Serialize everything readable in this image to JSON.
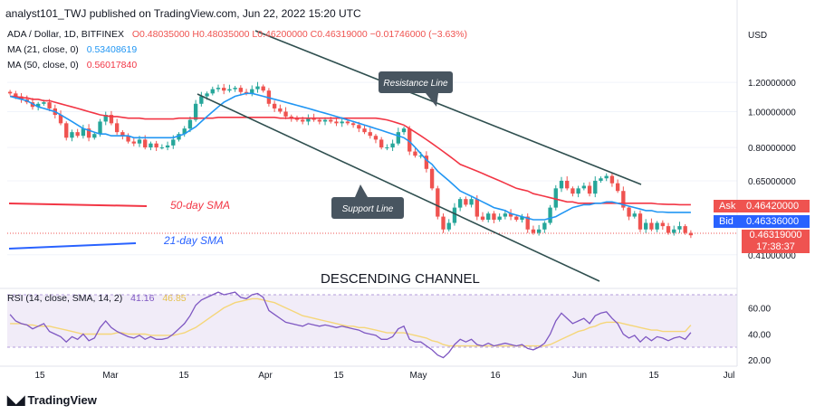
{
  "header": {
    "published": "analyst101_TWJ published on TradingView.com, Jun 22, 2022 15:20 UTC"
  },
  "legend": {
    "symbol": "ADA / Dollar, 1D, BITFINEX",
    "ohlc": "O0.48035000 H0.48035000 L0.46200000 C0.46319000 −0.01746000 (−3.63%)",
    "ma21_label": "MA (21, close, 0)",
    "ma21_value": "0.53408619",
    "ma50_label": "MA (50, close, 0)",
    "ma50_value": "0.56017840",
    "rsi_label": "RSI (14, close, SMA, 14, 2)",
    "rsi_value": "41.16",
    "rsi_sma_value": "46.85"
  },
  "annotations": {
    "resistance_line": "Resistance Line",
    "support_line": "Support Line",
    "sma50_text": "50-day SMA",
    "sma21_text": "21-day SMA",
    "channel_text": "DESCENDING  CHANNEL"
  },
  "price_axis": {
    "currency": "USD",
    "ask_label": "Ask",
    "ask_value": "0.46420000",
    "bid_label": "Bid",
    "bid_value": "0.46336000",
    "last_value": "0.46319000",
    "countdown": "17:38:37"
  },
  "footer": {
    "brand": "TradingView"
  },
  "colors": {
    "up": "#26a69a",
    "down": "#ef5350",
    "ma21": "#2196f3",
    "ma50": "#f23645",
    "rsi": "#7e57c2",
    "rsi_sma": "#f5d679",
    "line": "#2f4f4f",
    "callout": "#485560"
  },
  "chart_data": {
    "type": "candlestick",
    "price_scale": "log",
    "x_tick_labels": [
      "15",
      "Mar",
      "15",
      "Apr",
      "15",
      "May",
      "16",
      "Jun",
      "15",
      "Jul"
    ],
    "y_tick_labels": [
      "1.20000000",
      "1.00000000",
      "0.80000000",
      "0.65000000",
      "0.41000000"
    ],
    "y_ticks": [
      1.2,
      1.0,
      0.8,
      0.65,
      0.41
    ],
    "ylim": [
      0.37,
      1.6
    ],
    "candles_close": [
      1.12,
      1.1,
      1.08,
      1.06,
      1.03,
      1.05,
      1.06,
      1.02,
      0.98,
      0.93,
      0.85,
      0.88,
      0.86,
      0.9,
      0.85,
      0.87,
      0.94,
      0.98,
      0.93,
      0.88,
      0.86,
      0.83,
      0.82,
      0.84,
      0.8,
      0.82,
      0.8,
      0.8,
      0.81,
      0.84,
      0.87,
      0.9,
      0.95,
      1.05,
      1.1,
      1.12,
      1.15,
      1.16,
      1.14,
      1.15,
      1.16,
      1.13,
      1.12,
      1.15,
      1.17,
      1.14,
      1.05,
      1.02,
      1.0,
      0.97,
      0.96,
      0.95,
      0.94,
      0.96,
      0.95,
      0.94,
      0.95,
      0.94,
      0.93,
      0.94,
      0.93,
      0.92,
      0.9,
      0.88,
      0.86,
      0.84,
      0.8,
      0.8,
      0.82,
      0.88,
      0.9,
      0.78,
      0.76,
      0.76,
      0.7,
      0.62,
      0.52,
      0.48,
      0.5,
      0.55,
      0.58,
      0.56,
      0.58,
      0.52,
      0.51,
      0.53,
      0.51,
      0.52,
      0.53,
      0.52,
      0.51,
      0.52,
      0.48,
      0.47,
      0.48,
      0.5,
      0.55,
      0.62,
      0.65,
      0.62,
      0.6,
      0.62,
      0.63,
      0.6,
      0.65,
      0.66,
      0.67,
      0.64,
      0.61,
      0.55,
      0.52,
      0.53,
      0.48,
      0.5,
      0.48,
      0.5,
      0.49,
      0.47,
      0.48,
      0.49,
      0.47,
      0.463
    ],
    "ma21": [
      1.1,
      1.09,
      1.08,
      1.07,
      1.05,
      1.03,
      1.02,
      1.01,
      1.0,
      0.98,
      0.96,
      0.94,
      0.92,
      0.9,
      0.89,
      0.88,
      0.87,
      0.87,
      0.86,
      0.86,
      0.86,
      0.86,
      0.85,
      0.85,
      0.85,
      0.85,
      0.85,
      0.85,
      0.85,
      0.85,
      0.86,
      0.87,
      0.89,
      0.91,
      0.94,
      0.97,
      1.0,
      1.03,
      1.06,
      1.08,
      1.1,
      1.11,
      1.12,
      1.12,
      1.11,
      1.1,
      1.09,
      1.08,
      1.07,
      1.06,
      1.05,
      1.04,
      1.03,
      1.02,
      1.01,
      1.0,
      0.99,
      0.98,
      0.97,
      0.96,
      0.95,
      0.94,
      0.93,
      0.92,
      0.91,
      0.9,
      0.89,
      0.88,
      0.87,
      0.86,
      0.85,
      0.83,
      0.8,
      0.77,
      0.74,
      0.72,
      0.69,
      0.67,
      0.65,
      0.63,
      0.61,
      0.6,
      0.59,
      0.58,
      0.57,
      0.56,
      0.55,
      0.545,
      0.54,
      0.53,
      0.525,
      0.52,
      0.515,
      0.51,
      0.51,
      0.51,
      0.515,
      0.52,
      0.53,
      0.54,
      0.55,
      0.555,
      0.56,
      0.56,
      0.565,
      0.565,
      0.57,
      0.57,
      0.565,
      0.56,
      0.555,
      0.55,
      0.545,
      0.54,
      0.54,
      0.535,
      0.535,
      0.534,
      0.534,
      0.534,
      0.534,
      0.534
    ],
    "ma50": [
      1.1,
      1.1,
      1.09,
      1.09,
      1.08,
      1.08,
      1.07,
      1.07,
      1.06,
      1.05,
      1.04,
      1.03,
      1.02,
      1.01,
      1.0,
      0.99,
      0.98,
      0.975,
      0.97,
      0.97,
      0.965,
      0.96,
      0.96,
      0.96,
      0.955,
      0.955,
      0.955,
      0.955,
      0.955,
      0.955,
      0.96,
      0.96,
      0.96,
      0.96,
      0.96,
      0.96,
      0.96,
      0.965,
      0.965,
      0.965,
      0.965,
      0.965,
      0.965,
      0.965,
      0.965,
      0.965,
      0.965,
      0.965,
      0.96,
      0.96,
      0.96,
      0.96,
      0.96,
      0.96,
      0.96,
      0.96,
      0.96,
      0.96,
      0.96,
      0.96,
      0.96,
      0.96,
      0.96,
      0.96,
      0.96,
      0.96,
      0.955,
      0.95,
      0.94,
      0.93,
      0.92,
      0.9,
      0.88,
      0.86,
      0.84,
      0.82,
      0.8,
      0.78,
      0.76,
      0.74,
      0.72,
      0.71,
      0.7,
      0.69,
      0.68,
      0.67,
      0.66,
      0.65,
      0.64,
      0.63,
      0.62,
      0.615,
      0.61,
      0.6,
      0.595,
      0.59,
      0.585,
      0.58,
      0.575,
      0.57,
      0.57,
      0.565,
      0.565,
      0.565,
      0.565,
      0.565,
      0.565,
      0.565,
      0.565,
      0.565,
      0.565,
      0.565,
      0.565,
      0.565,
      0.565,
      0.563,
      0.562,
      0.561,
      0.561,
      0.56,
      0.56,
      0.56
    ],
    "rsi": [
      55,
      50,
      48,
      47,
      44,
      46,
      48,
      42,
      40,
      38,
      34,
      38,
      36,
      40,
      35,
      37,
      45,
      50,
      45,
      42,
      40,
      38,
      37,
      39,
      36,
      38,
      36,
      36,
      37,
      40,
      44,
      48,
      54,
      62,
      66,
      68,
      70,
      72,
      70,
      71,
      72,
      68,
      67,
      70,
      71,
      68,
      58,
      55,
      52,
      49,
      48,
      47,
      46,
      48,
      47,
      46,
      47,
      46,
      45,
      46,
      45,
      44,
      43,
      41,
      40,
      39,
      36,
      36,
      38,
      44,
      46,
      36,
      34,
      34,
      31,
      28,
      24,
      22,
      26,
      32,
      36,
      34,
      36,
      32,
      31,
      33,
      31,
      32,
      33,
      32,
      31,
      32,
      29,
      28,
      30,
      33,
      40,
      50,
      56,
      52,
      48,
      50,
      52,
      48,
      54,
      56,
      57,
      52,
      48,
      40,
      37,
      39,
      34,
      38,
      35,
      38,
      37,
      35,
      37,
      38,
      36,
      41.16
    ],
    "rsi_sma": [
      48,
      48,
      48,
      47,
      47,
      46,
      46,
      46,
      45,
      44,
      43,
      42,
      41,
      40,
      40,
      40,
      40,
      40,
      40,
      41,
      41,
      40,
      40,
      40,
      40,
      39,
      39,
      39,
      39,
      39,
      40,
      41,
      43,
      45,
      48,
      51,
      54,
      57,
      60,
      62,
      64,
      65,
      66,
      67,
      67,
      66,
      65,
      64,
      62,
      60,
      58,
      56,
      54,
      53,
      52,
      51,
      50,
      49,
      48,
      47,
      46,
      46,
      45,
      45,
      44,
      43,
      42,
      41,
      41,
      41,
      41,
      40,
      39,
      38,
      37,
      35,
      34,
      32,
      31,
      31,
      31,
      31,
      31,
      31,
      31,
      31,
      31,
      31,
      31,
      31,
      31,
      31,
      31,
      31,
      31,
      31,
      32,
      34,
      36,
      38,
      40,
      42,
      43,
      45,
      46,
      48,
      49,
      49,
      49,
      48,
      47,
      46,
      45,
      44,
      43,
      43,
      42,
      42,
      42,
      42,
      42,
      46.85
    ],
    "rsi_ylim": [
      20,
      72
    ],
    "rsi_y_tick_labels": [
      "60.00",
      "40.00",
      "20.00"
    ],
    "rsi_y_ticks": [
      60,
      40,
      20
    ],
    "rsi_band": [
      30,
      70
    ]
  }
}
